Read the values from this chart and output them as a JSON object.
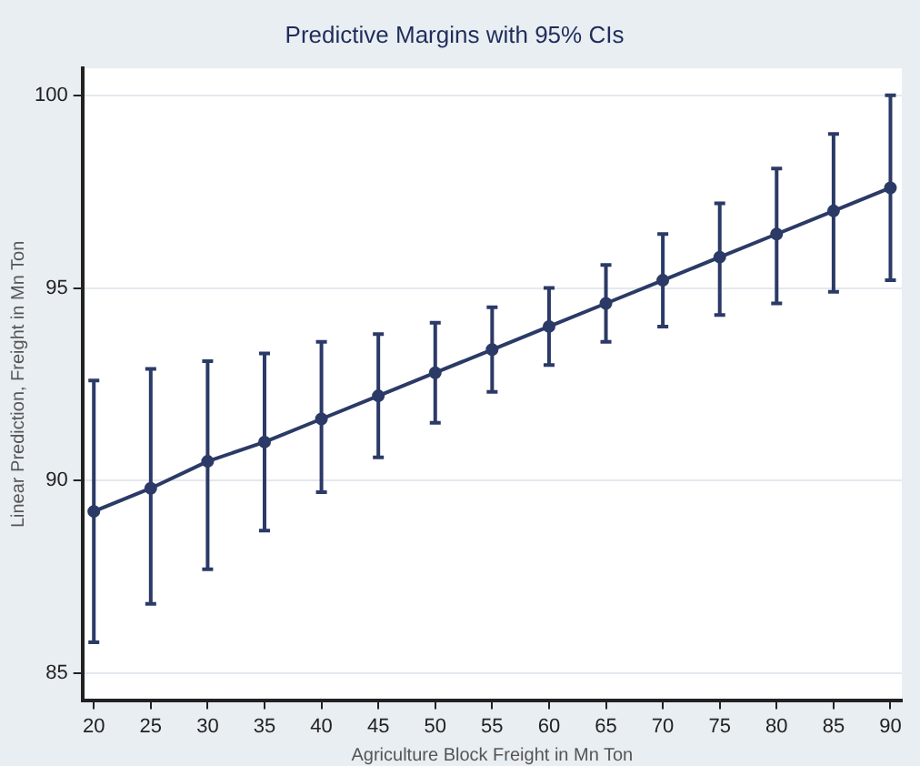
{
  "chart_data": {
    "type": "line",
    "title": "Predictive Margins with 95% CIs",
    "xlabel": "Agriculture Block Freight in Mn Ton",
    "ylabel": "Linear Prediction, Freight in Mn Ton",
    "x": [
      20,
      25,
      30,
      35,
      40,
      45,
      50,
      55,
      60,
      65,
      70,
      75,
      80,
      85,
      90
    ],
    "series": [
      {
        "color": "#2b3a66",
        "values": [
          89.2,
          89.8,
          90.5,
          91.0,
          91.6,
          92.2,
          92.8,
          93.4,
          94.0,
          94.6,
          95.2,
          95.8,
          96.4,
          97.0,
          97.6
        ],
        "errors": [
          [
            85.8,
            92.6
          ],
          [
            86.8,
            92.9
          ],
          [
            87.7,
            93.1
          ],
          [
            88.7,
            93.3
          ],
          [
            89.7,
            93.6
          ],
          [
            90.6,
            93.8
          ],
          [
            91.5,
            94.1
          ],
          [
            92.3,
            94.5
          ],
          [
            93.0,
            95.0
          ],
          [
            93.6,
            95.6
          ],
          [
            94.0,
            96.4
          ],
          [
            94.3,
            97.2
          ],
          [
            94.6,
            98.1
          ],
          [
            94.9,
            99.0
          ],
          [
            95.2,
            100.0
          ]
        ]
      }
    ],
    "xlim": [
      19,
      91
    ],
    "xticks": [
      20,
      25,
      30,
      35,
      40,
      45,
      50,
      55,
      60,
      65,
      70,
      75,
      80,
      85,
      90
    ],
    "ylim": [
      84.3,
      100.7
    ],
    "yticks": [
      85,
      90,
      95,
      100
    ],
    "grid": "y",
    "legend": false,
    "marker": "circle",
    "line_style": "solid"
  }
}
